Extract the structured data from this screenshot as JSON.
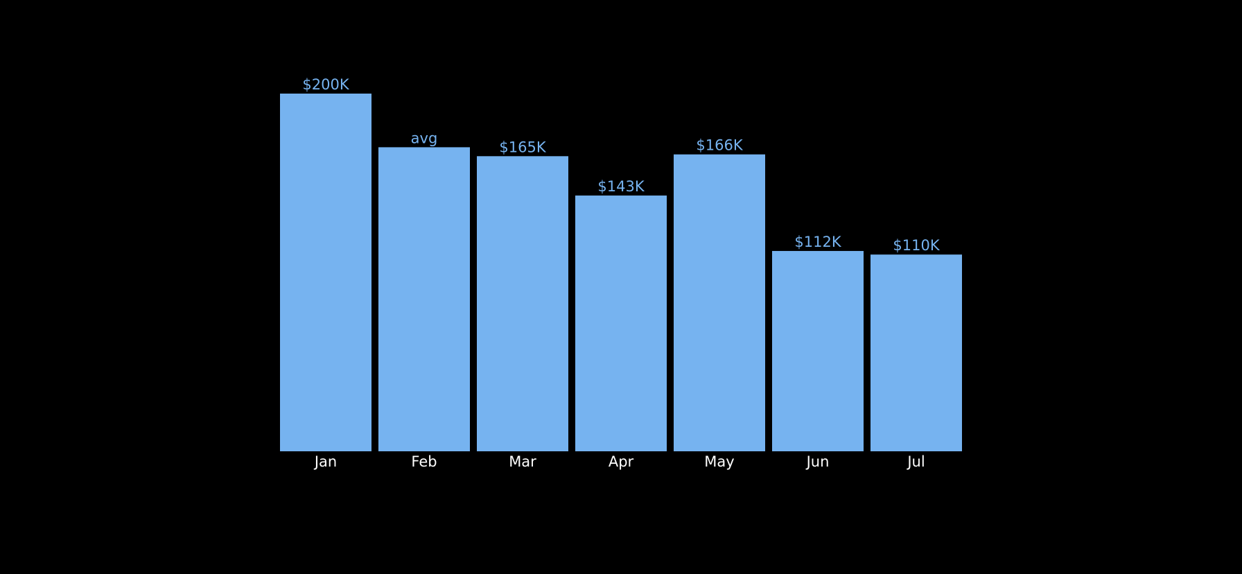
{
  "chart_data": {
    "type": "bar",
    "categories": [
      "Jan",
      "Feb",
      "Mar",
      "Apr",
      "May",
      "Jun",
      "Jul"
    ],
    "values": [
      200,
      170,
      165,
      143,
      166,
      112,
      110
    ],
    "value_unit": "$K",
    "data_labels": [
      "$200K",
      "avg",
      "$165K",
      "$143K",
      "$166K",
      "$112K",
      "$110K"
    ],
    "ylim": [
      0,
      200
    ],
    "grid": false,
    "legend": "none"
  },
  "colors": {
    "background": "#000000",
    "bar": "#76b3f0",
    "data_label": "#76b3f0",
    "tick_label": "#ffffff"
  }
}
